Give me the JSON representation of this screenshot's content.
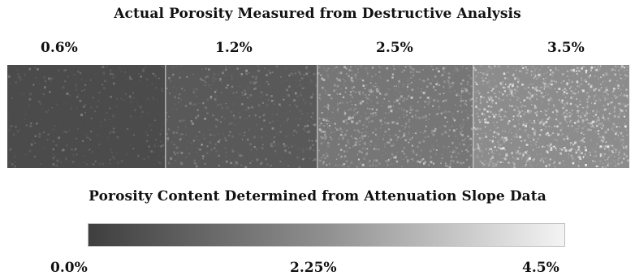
{
  "top_title": "Actual Porosity Measured from Destructive Analysis",
  "samples": [
    {
      "label": "0.6%",
      "porosity": 0.6
    },
    {
      "label": "1.2%",
      "porosity": 1.2
    },
    {
      "label": "2.5%",
      "porosity": 2.5
    },
    {
      "label": "3.5%",
      "porosity": 3.5
    }
  ],
  "bottom_title": "Porosity Content Determined from Attenuation Slope Data",
  "scale": {
    "min_label": "0.0%",
    "mid_label": "2.25%",
    "max_label": "4.5%",
    "min": 0.0,
    "max": 4.5,
    "colors": [
      "#3e3e3e",
      "#f4f4f4"
    ]
  }
}
